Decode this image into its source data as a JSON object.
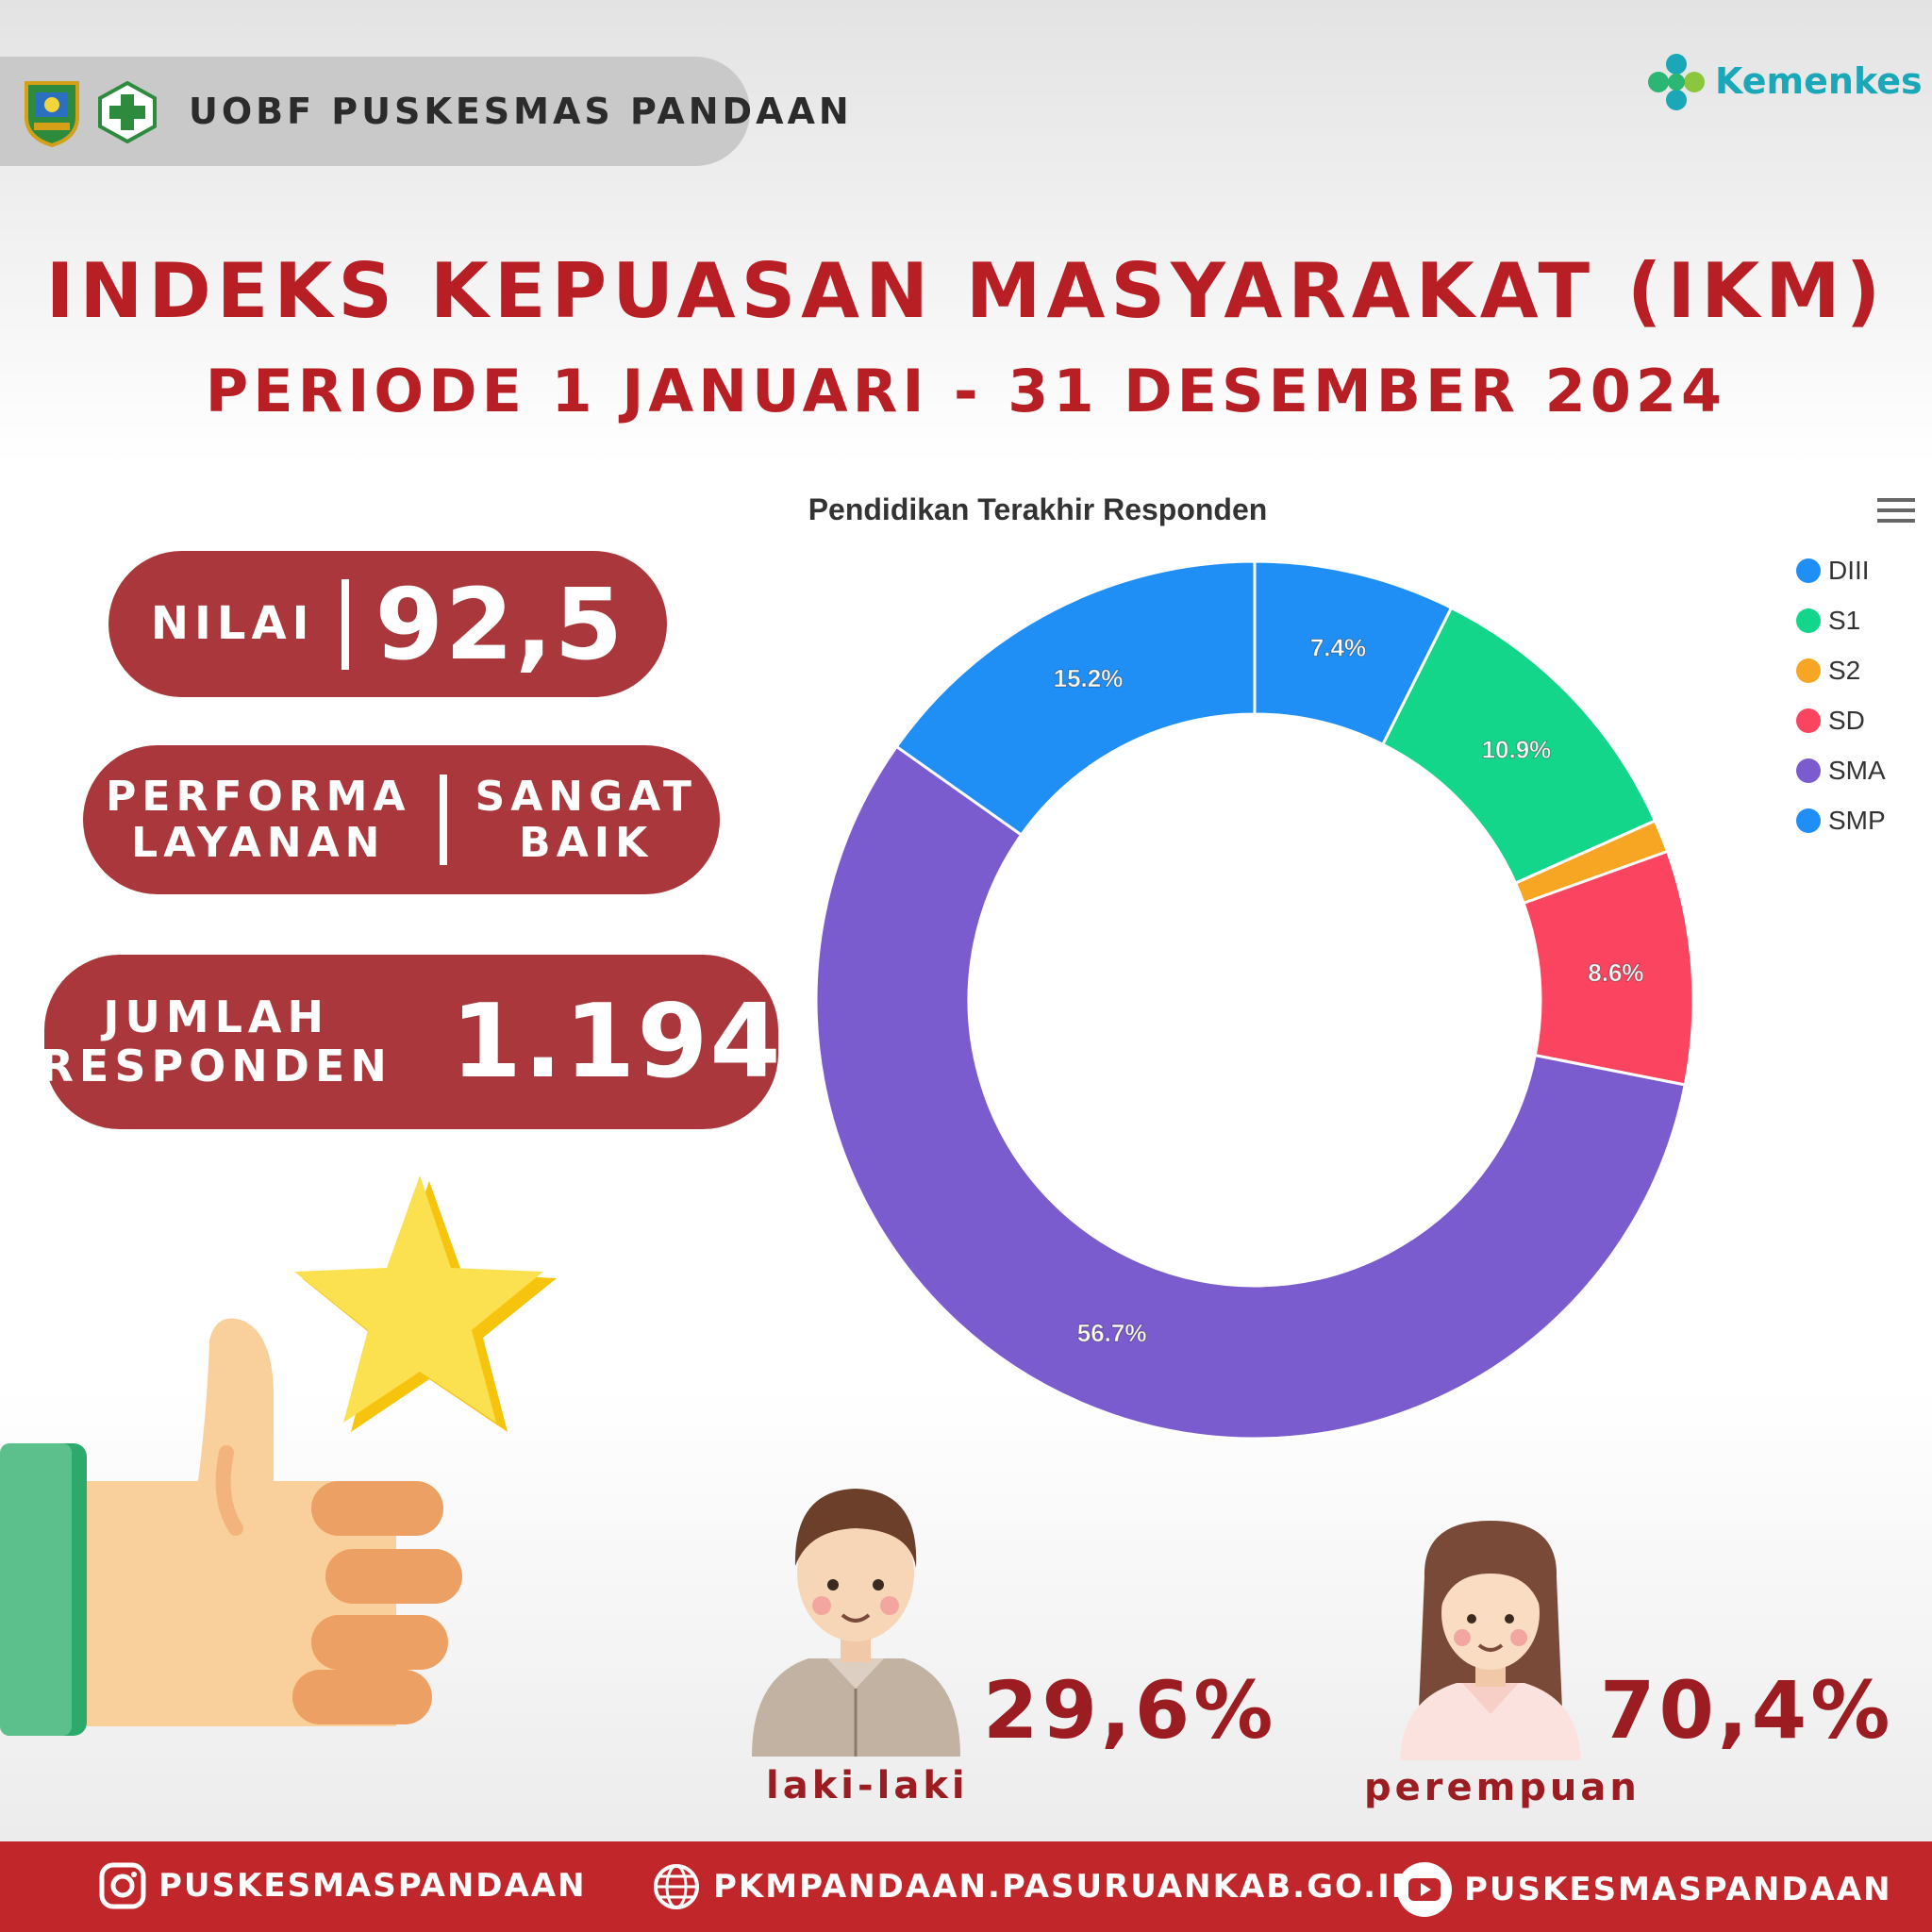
{
  "header": {
    "org_name": "UOBF PUSKESMAS PANDAAN",
    "brand": "Kemenkes"
  },
  "title": "INDEKS KEPUASAN MASYARAKAT (IKM)",
  "subtitle": "PERIODE 1 JANUARI - 31 DESEMBER 2024",
  "stats": {
    "nilai_label": "NILAI",
    "nilai_value": "92,5",
    "performa_label_1": "PERFORMA",
    "performa_label_2": "LAYANAN",
    "performa_value_1": "SANGAT",
    "performa_value_2": "BAIK",
    "jumlah_label_1": "JUMLAH",
    "jumlah_label_2": "RESPONDEN",
    "jumlah_value": "1.194"
  },
  "chart_data": {
    "type": "pie",
    "title": "Pendidikan Terakhir Responden",
    "legend_position": "right",
    "slices": [
      {
        "name": "DIII",
        "value": 7.4,
        "label": "7.4%",
        "color": "#1f8ff5"
      },
      {
        "name": "S1",
        "value": 10.9,
        "label": "10.9%",
        "color": "#13d68a"
      },
      {
        "name": "S2",
        "value": 1.2,
        "label": "",
        "color": "#f7a623"
      },
      {
        "name": "SD",
        "value": 8.6,
        "label": "8.6%",
        "color": "#fa4460"
      },
      {
        "name": "SMA",
        "value": 56.7,
        "label": "56.7%",
        "color": "#7b5ccf"
      },
      {
        "name": "SMP",
        "value": 15.2,
        "label": "15.2%",
        "color": "#1f8ff5"
      }
    ]
  },
  "gender": {
    "male_pct": "29,6%",
    "male_label": "laki-laki",
    "female_pct": "70,4%",
    "female_label": "perempuan"
  },
  "footer": {
    "instagram": "PUSKESMASPANDAAN",
    "website": "PKMPANDAAN.PASURUANKAB.GO.ID",
    "youtube": "PUSKESMASPANDAAN"
  }
}
